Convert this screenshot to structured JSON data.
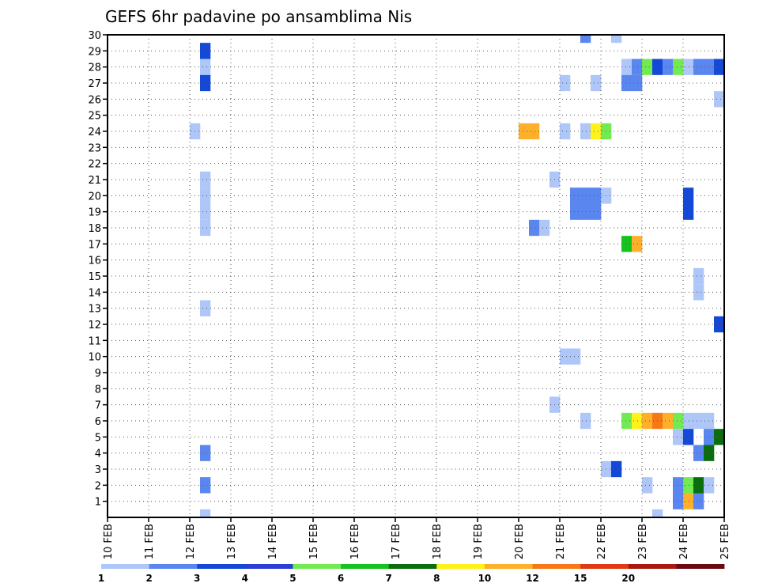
{
  "chart_data": {
    "type": "heatmap",
    "title": "GEFS 6hr padavine po ansamblima Nis",
    "xlabel": "",
    "ylabel": "",
    "x_ticks": [
      "10 FEB",
      "11 FEB",
      "12 FEB",
      "13 FEB",
      "14 FEB",
      "15 FEB",
      "16 FEB",
      "17 FEB",
      "18 FEB",
      "19 FEB",
      "20 FEB",
      "21 FEB",
      "22 FEB",
      "23 FEB",
      "24 FEB",
      "25 FEB"
    ],
    "x_range_days": [
      10,
      25
    ],
    "y_ticks": [
      1,
      2,
      3,
      4,
      5,
      6,
      7,
      8,
      9,
      10,
      11,
      12,
      13,
      14,
      15,
      16,
      17,
      18,
      19,
      20,
      21,
      22,
      23,
      24,
      25,
      26,
      27,
      28,
      29,
      30
    ],
    "y_range": [
      0,
      30
    ],
    "grid": "dotted",
    "colorbar": {
      "labels": [
        "1",
        "2",
        "3",
        "4",
        "5",
        "6",
        "7",
        "8",
        "10",
        "12",
        "15",
        "20"
      ],
      "colors": [
        "#aec6f8",
        "#5a86f0",
        "#1448d6",
        "#2c3fd4",
        "#72ea52",
        "#16c21e",
        "#0a6e0e",
        "#fff21a",
        "#ffb02a",
        "#f87818",
        "#e03a14",
        "#a81a10",
        "#6a0a10"
      ]
    },
    "cells": [
      {
        "member": 30,
        "day": 21.5,
        "level": 2
      },
      {
        "member": 30,
        "day": 22.25,
        "level": 1
      },
      {
        "member": 29,
        "day": 12.25,
        "level": 3
      },
      {
        "member": 28,
        "day": 12.25,
        "level": 1
      },
      {
        "member": 28,
        "day": 22.5,
        "level": 1
      },
      {
        "member": 28,
        "day": 22.75,
        "level": 2
      },
      {
        "member": 28,
        "day": 23.0,
        "level": 5
      },
      {
        "member": 28,
        "day": 23.25,
        "level": 3
      },
      {
        "member": 28,
        "day": 23.5,
        "level": 2
      },
      {
        "member": 28,
        "day": 23.75,
        "level": 5
      },
      {
        "member": 28,
        "day": 24.0,
        "level": 1
      },
      {
        "member": 28,
        "day": 24.25,
        "level": 2
      },
      {
        "member": 28,
        "day": 24.5,
        "level": 2
      },
      {
        "member": 28,
        "day": 24.75,
        "level": 3
      },
      {
        "member": 27,
        "day": 12.25,
        "level": 3
      },
      {
        "member": 27,
        "day": 21.0,
        "level": 1
      },
      {
        "member": 27,
        "day": 21.75,
        "level": 1
      },
      {
        "member": 27,
        "day": 22.5,
        "level": 2
      },
      {
        "member": 27,
        "day": 22.75,
        "level": 2
      },
      {
        "member": 26,
        "day": 24.75,
        "level": 1
      },
      {
        "member": 24,
        "day": 12.0,
        "level": 1
      },
      {
        "member": 24,
        "day": 20.0,
        "level": 9
      },
      {
        "member": 24,
        "day": 20.25,
        "level": 9
      },
      {
        "member": 24,
        "day": 21.0,
        "level": 1
      },
      {
        "member": 24,
        "day": 21.5,
        "level": 1
      },
      {
        "member": 24,
        "day": 21.75,
        "level": 8
      },
      {
        "member": 24,
        "day": 22.0,
        "level": 5
      },
      {
        "member": 21,
        "day": 12.25,
        "level": 1
      },
      {
        "member": 21,
        "day": 20.75,
        "level": 1
      },
      {
        "member": 20,
        "day": 12.25,
        "level": 1
      },
      {
        "member": 20,
        "day": 21.25,
        "level": 2
      },
      {
        "member": 20,
        "day": 21.5,
        "level": 2
      },
      {
        "member": 20,
        "day": 21.75,
        "level": 2
      },
      {
        "member": 20,
        "day": 22.0,
        "level": 1
      },
      {
        "member": 20,
        "day": 24.0,
        "level": 3
      },
      {
        "member": 19,
        "day": 12.25,
        "level": 1
      },
      {
        "member": 19,
        "day": 21.25,
        "level": 2
      },
      {
        "member": 19,
        "day": 21.5,
        "level": 2
      },
      {
        "member": 19,
        "day": 21.75,
        "level": 2
      },
      {
        "member": 19,
        "day": 24.0,
        "level": 3
      },
      {
        "member": 18,
        "day": 12.25,
        "level": 1
      },
      {
        "member": 18,
        "day": 20.25,
        "level": 2
      },
      {
        "member": 18,
        "day": 20.5,
        "level": 1
      },
      {
        "member": 17,
        "day": 22.5,
        "level": 6
      },
      {
        "member": 17,
        "day": 22.75,
        "level": 9
      },
      {
        "member": 15,
        "day": 24.25,
        "level": 1
      },
      {
        "member": 14,
        "day": 24.25,
        "level": 1
      },
      {
        "member": 13,
        "day": 12.25,
        "level": 1
      },
      {
        "member": 12,
        "day": 24.75,
        "level": 3
      },
      {
        "member": 10,
        "day": 21.0,
        "level": 1
      },
      {
        "member": 10,
        "day": 21.25,
        "level": 1
      },
      {
        "member": 7,
        "day": 20.75,
        "level": 1
      },
      {
        "member": 6,
        "day": 21.5,
        "level": 1
      },
      {
        "member": 6,
        "day": 22.5,
        "level": 5
      },
      {
        "member": 6,
        "day": 22.75,
        "level": 8
      },
      {
        "member": 6,
        "day": 23.0,
        "level": 9
      },
      {
        "member": 6,
        "day": 23.25,
        "level": 10
      },
      {
        "member": 6,
        "day": 23.5,
        "level": 9
      },
      {
        "member": 6,
        "day": 23.75,
        "level": 5
      },
      {
        "member": 6,
        "day": 24.0,
        "level": 1
      },
      {
        "member": 6,
        "day": 24.25,
        "level": 1
      },
      {
        "member": 6,
        "day": 24.5,
        "level": 1
      },
      {
        "member": 5,
        "day": 23.75,
        "level": 1
      },
      {
        "member": 5,
        "day": 24.0,
        "level": 3
      },
      {
        "member": 5,
        "day": 24.5,
        "level": 2
      },
      {
        "member": 5,
        "day": 24.75,
        "level": 7
      },
      {
        "member": 4,
        "day": 12.25,
        "level": 2
      },
      {
        "member": 4,
        "day": 24.25,
        "level": 2
      },
      {
        "member": 4,
        "day": 24.5,
        "level": 7
      },
      {
        "member": 3,
        "day": 22.0,
        "level": 1
      },
      {
        "member": 3,
        "day": 22.25,
        "level": 3
      },
      {
        "member": 2,
        "day": 12.25,
        "level": 2
      },
      {
        "member": 2,
        "day": 23.0,
        "level": 1
      },
      {
        "member": 2,
        "day": 23.75,
        "level": 2
      },
      {
        "member": 2,
        "day": 24.0,
        "level": 5
      },
      {
        "member": 2,
        "day": 24.25,
        "level": 7
      },
      {
        "member": 2,
        "day": 24.5,
        "level": 1
      },
      {
        "member": 1,
        "day": 23.75,
        "level": 2
      },
      {
        "member": 1,
        "day": 24.0,
        "level": 9
      },
      {
        "member": 1,
        "day": 24.25,
        "level": 2
      },
      {
        "member": 0,
        "day": 12.25,
        "level": 1
      },
      {
        "member": 0,
        "day": 23.25,
        "level": 1
      }
    ]
  }
}
